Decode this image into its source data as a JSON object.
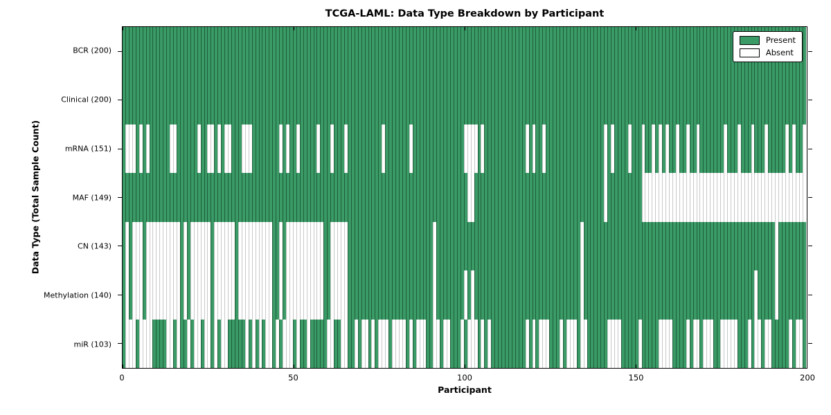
{
  "title": "TCGA-LAML: Data Type Breakdown by Participant",
  "axes": {
    "x_label": "Participant",
    "y_label": "Data Type (Total Sample Count)",
    "x_ticks": [
      0,
      50,
      100,
      150,
      200
    ]
  },
  "legend": {
    "items": [
      {
        "label": "Present",
        "color": "#3a9b67"
      },
      {
        "label": "Absent",
        "color": "#ffffff"
      }
    ]
  },
  "colors": {
    "present_fill": "#3a9b67",
    "present_edge": "#1f5c39",
    "absent_fill": "#ffffff",
    "absent_edge": "#c8c8c8"
  },
  "chart_data": {
    "type": "heatmap",
    "title": "TCGA-LAML: Data Type Breakdown by Participant",
    "xlabel": "Participant",
    "ylabel": "Data Type (Total Sample Count)",
    "x_ticks": [
      0,
      50,
      100,
      150,
      200
    ],
    "n_participants": 200,
    "legend": [
      "Present",
      "Absent"
    ],
    "legend_position": "upper right",
    "rows": [
      {
        "name": "BCR",
        "label": "BCR (200)",
        "total": 200,
        "absent_ranges": []
      },
      {
        "name": "Clinical",
        "label": "Clinical (200)",
        "total": 200,
        "absent_ranges": []
      },
      {
        "name": "mRNA",
        "label": "mRNA (151)",
        "total": 151,
        "absent_ranges": [
          [
            1,
            3
          ],
          [
            5,
            5
          ],
          [
            7,
            7
          ],
          [
            14,
            15
          ],
          [
            22,
            22
          ],
          [
            25,
            26
          ],
          [
            28,
            28
          ],
          [
            30,
            31
          ],
          [
            35,
            37
          ],
          [
            46,
            46
          ],
          [
            48,
            48
          ],
          [
            51,
            51
          ],
          [
            57,
            57
          ],
          [
            61,
            61
          ],
          [
            65,
            65
          ],
          [
            76,
            76
          ],
          [
            84,
            84
          ],
          [
            100,
            103
          ],
          [
            105,
            105
          ],
          [
            118,
            118
          ],
          [
            120,
            120
          ],
          [
            123,
            123
          ],
          [
            141,
            141
          ],
          [
            143,
            143
          ],
          [
            148,
            148
          ],
          [
            152,
            152
          ],
          [
            155,
            155
          ],
          [
            157,
            157
          ],
          [
            159,
            159
          ],
          [
            162,
            162
          ],
          [
            165,
            165
          ],
          [
            168,
            168
          ],
          [
            176,
            176
          ],
          [
            180,
            180
          ],
          [
            184,
            184
          ],
          [
            188,
            188
          ],
          [
            194,
            194
          ],
          [
            196,
            196
          ],
          [
            199,
            199
          ]
        ]
      },
      {
        "name": "MAF",
        "label": "MAF (149)",
        "total": 149,
        "absent_ranges": [
          [
            101,
            102
          ],
          [
            141,
            141
          ],
          [
            152,
            199
          ]
        ]
      },
      {
        "name": "CN",
        "label": "CN (143)",
        "total": 143,
        "absent_ranges": [
          [
            1,
            1
          ],
          [
            3,
            5
          ],
          [
            7,
            16
          ],
          [
            18,
            18
          ],
          [
            20,
            25
          ],
          [
            27,
            32
          ],
          [
            34,
            43
          ],
          [
            46,
            46
          ],
          [
            48,
            58
          ],
          [
            61,
            65
          ],
          [
            91,
            91
          ],
          [
            134,
            134
          ],
          [
            191,
            191
          ]
        ]
      },
      {
        "name": "Methylation",
        "label": "Methylation (140)",
        "total": 140,
        "absent_ranges": [
          [
            1,
            1
          ],
          [
            3,
            5
          ],
          [
            7,
            16
          ],
          [
            18,
            18
          ],
          [
            20,
            25
          ],
          [
            27,
            32
          ],
          [
            34,
            43
          ],
          [
            46,
            46
          ],
          [
            48,
            58
          ],
          [
            61,
            65
          ],
          [
            91,
            91
          ],
          [
            100,
            100
          ],
          [
            102,
            102
          ],
          [
            134,
            134
          ],
          [
            185,
            185
          ],
          [
            191,
            191
          ]
        ]
      },
      {
        "name": "miR",
        "label": "miR (103)",
        "total": 103,
        "absent_ranges": [
          [
            1,
            3
          ],
          [
            5,
            8
          ],
          [
            13,
            14
          ],
          [
            16,
            16
          ],
          [
            19,
            19
          ],
          [
            21,
            22
          ],
          [
            24,
            25
          ],
          [
            27,
            27
          ],
          [
            29,
            30
          ],
          [
            36,
            36
          ],
          [
            38,
            38
          ],
          [
            40,
            40
          ],
          [
            42,
            43
          ],
          [
            45,
            45
          ],
          [
            47,
            49
          ],
          [
            51,
            51
          ],
          [
            54,
            54
          ],
          [
            60,
            61
          ],
          [
            64,
            65
          ],
          [
            68,
            68
          ],
          [
            70,
            71
          ],
          [
            73,
            73
          ],
          [
            75,
            77
          ],
          [
            79,
            82
          ],
          [
            84,
            84
          ],
          [
            86,
            88
          ],
          [
            91,
            92
          ],
          [
            94,
            95
          ],
          [
            99,
            99
          ],
          [
            101,
            103
          ],
          [
            105,
            105
          ],
          [
            107,
            107
          ],
          [
            118,
            118
          ],
          [
            120,
            120
          ],
          [
            122,
            124
          ],
          [
            128,
            128
          ],
          [
            130,
            132
          ],
          [
            134,
            135
          ],
          [
            142,
            145
          ],
          [
            151,
            151
          ],
          [
            157,
            160
          ],
          [
            165,
            165
          ],
          [
            167,
            168
          ],
          [
            170,
            172
          ],
          [
            175,
            179
          ],
          [
            183,
            183
          ],
          [
            185,
            186
          ],
          [
            188,
            189
          ],
          [
            195,
            195
          ],
          [
            197,
            198
          ]
        ]
      }
    ]
  }
}
